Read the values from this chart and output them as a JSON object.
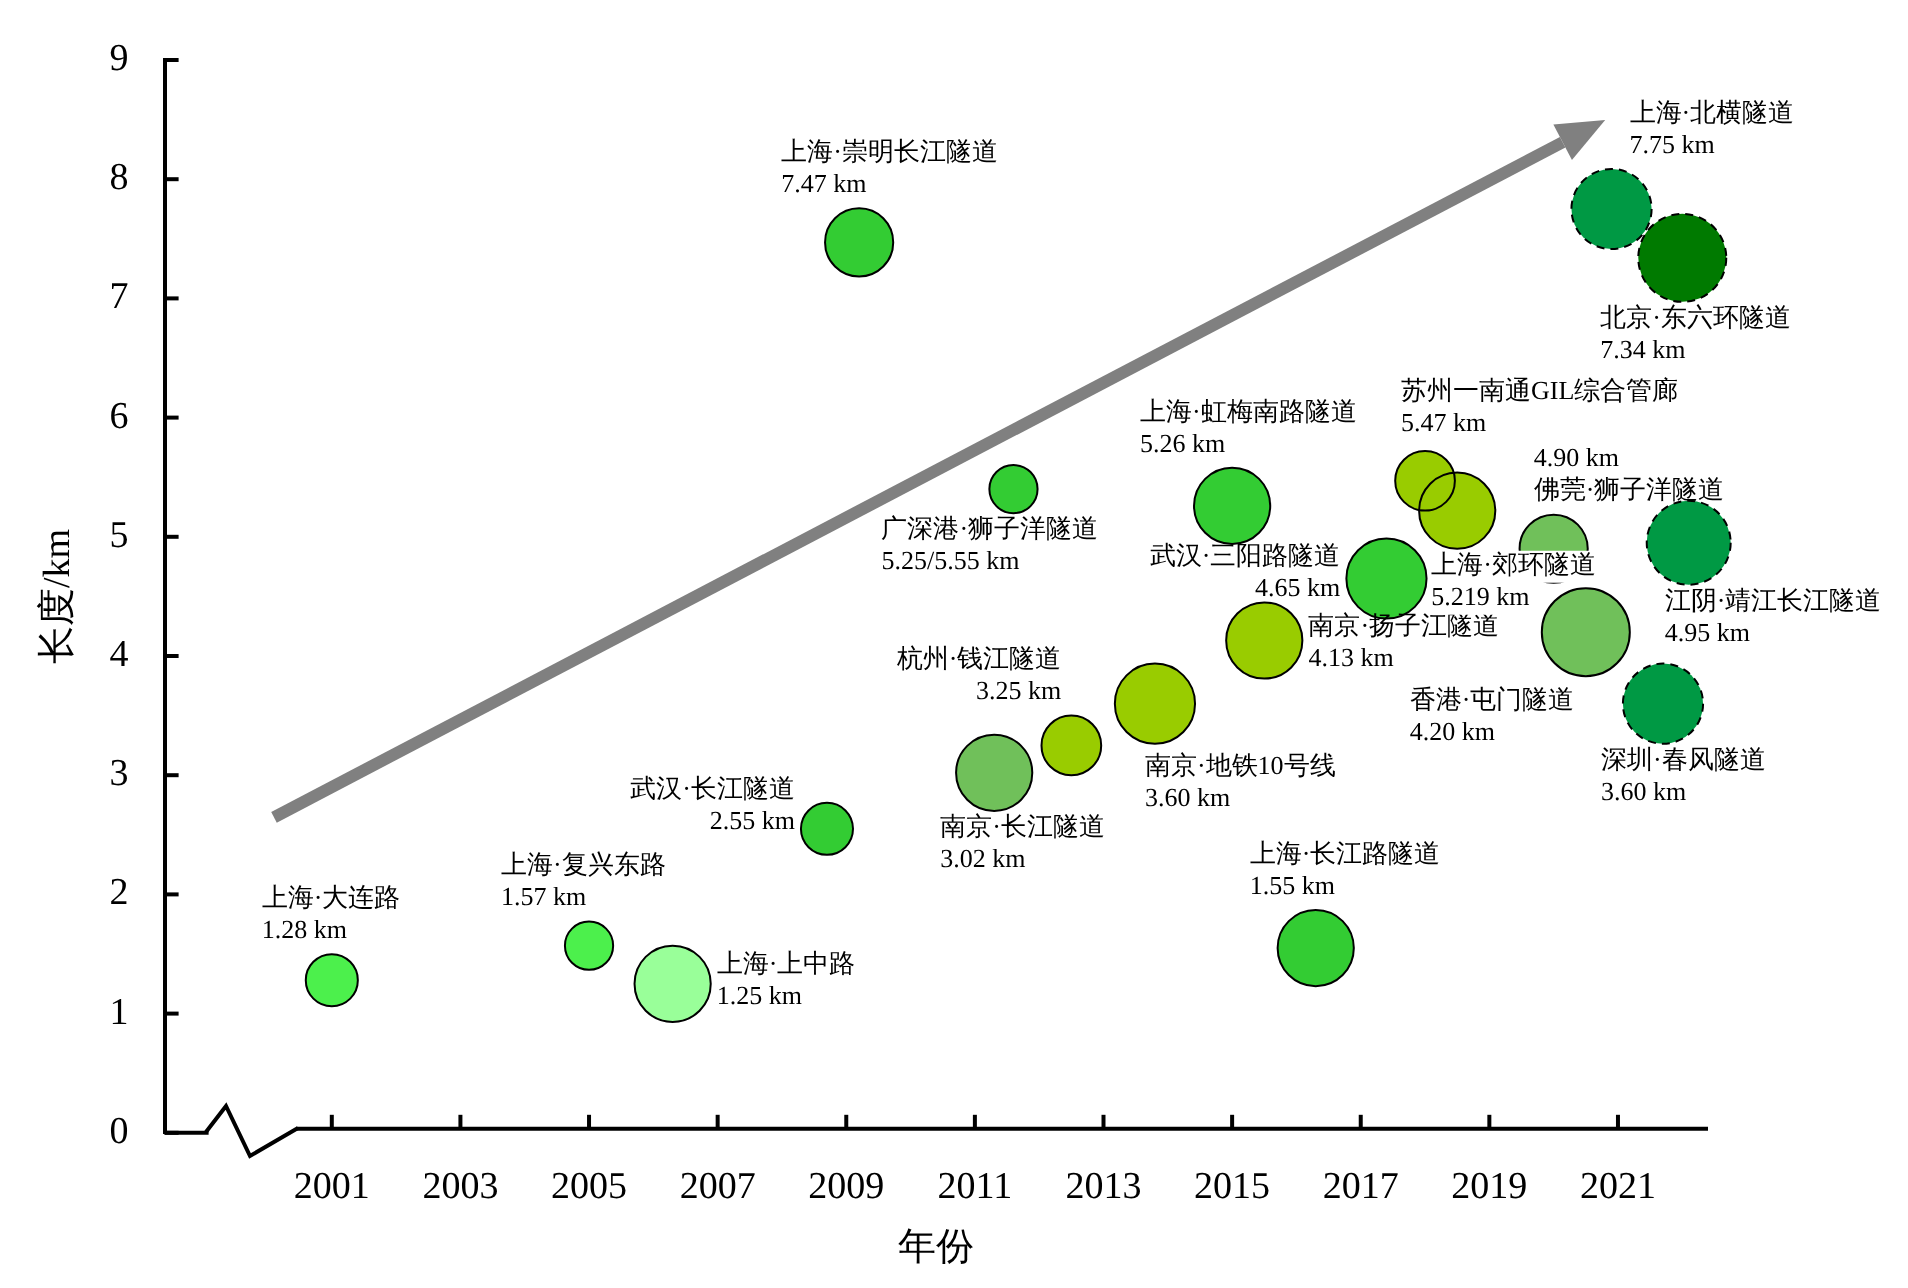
{
  "chart_data": {
    "type": "bubble",
    "xlabel": "年份",
    "ylabel": "长度/km",
    "xlim": [
      1998.4,
      2022.4
    ],
    "xticks": [
      2001,
      2003,
      2005,
      2007,
      2009,
      2011,
      2013,
      2015,
      2017,
      2019,
      2021
    ],
    "ylim": [
      0,
      9
    ],
    "yticks": [
      0,
      1,
      2,
      3,
      4,
      5,
      6,
      7,
      8,
      9
    ],
    "legend": false,
    "marker": "circle",
    "series": [
      {
        "name": "上海·大连路",
        "color": "#4cf04c",
        "x": [
          2001.0
        ],
        "values": [
          1.28
        ],
        "sizes": [
          0.35
        ],
        "value_labels": [
          "1.28 km"
        ]
      },
      {
        "name": "上海·复兴东路",
        "color": "#4cf04c",
        "x": [
          2005.0
        ],
        "values": [
          1.57
        ],
        "sizes": [
          0.3
        ],
        "value_labels": [
          "1.57 km"
        ]
      },
      {
        "name": "上海·上中路",
        "color": "#99ff99",
        "x": [
          2006.3
        ],
        "values": [
          1.25
        ],
        "sizes": [
          0.75
        ],
        "value_labels": [
          "1.25 km"
        ]
      },
      {
        "name": "武汉·长江隧道",
        "color": "#33cc33",
        "x": [
          2008.7
        ],
        "values": [
          2.55
        ],
        "sizes": [
          0.35
        ],
        "value_labels": [
          "2.55 km"
        ]
      },
      {
        "name": "上海·崇明长江隧道",
        "color": "#33cc33",
        "x": [
          2009.2
        ],
        "values": [
          7.47
        ],
        "sizes": [
          0.6
        ],
        "value_labels": [
          "7.47 km"
        ]
      },
      {
        "name": "南京·长江隧道",
        "color": "#70c05a",
        "x": [
          2011.3
        ],
        "values": [
          3.02
        ],
        "sizes": [
          0.75
        ],
        "value_labels": [
          "3.02 km"
        ]
      },
      {
        "name": "杭州·钱江隧道",
        "color": "#99cc00",
        "x": [
          2012.5
        ],
        "values": [
          3.25
        ],
        "sizes": [
          0.46
        ],
        "value_labels": [
          "3.25 km"
        ]
      },
      {
        "name": "南京·地铁10号线",
        "color": "#99cc00",
        "x": [
          2013.8
        ],
        "values": [
          3.6
        ],
        "sizes": [
          0.83
        ],
        "value_labels": [
          "3.60 km"
        ]
      },
      {
        "name": "广深港·狮子洋隧道",
        "color": "#33cc33",
        "x": [
          2011.6
        ],
        "values": [
          5.4
        ],
        "sizes": [
          0.3
        ],
        "value_labels": [
          "5.25/5.55 km"
        ]
      },
      {
        "name": "上海·虹梅南路隧道",
        "color": "#33cc33",
        "x": [
          2015.0
        ],
        "values": [
          5.26
        ],
        "sizes": [
          0.75
        ],
        "value_labels": [
          "5.26 km"
        ]
      },
      {
        "name": "南京·扬子江隧道",
        "color": "#99cc00",
        "x": [
          2015.5
        ],
        "values": [
          4.13
        ],
        "sizes": [
          0.75
        ],
        "value_labels": [
          "4.13 km"
        ]
      },
      {
        "name": "武汉·三阳路隧道",
        "color": "#33cc33",
        "x": [
          2017.4
        ],
        "values": [
          4.65
        ],
        "sizes": [
          0.83
        ],
        "value_labels": [
          "4.65 km"
        ]
      },
      {
        "name": "苏州一南通GIL综合管廊",
        "color": "#99cc00",
        "x": [
          2018.0
        ],
        "values": [
          5.47
        ],
        "sizes": [
          0.46
        ],
        "value_labels": [
          "5.47 km"
        ]
      },
      {
        "name": "上海·郊环隧道",
        "color": "#99cc00",
        "x": [
          2018.5
        ],
        "values": [
          5.219
        ],
        "sizes": [
          0.75
        ],
        "value_labels": [
          "5.219 km"
        ]
      },
      {
        "name": "佛莞·狮子洋隧道",
        "color": "#70c05a",
        "x": [
          2020.0
        ],
        "values": [
          4.9
        ],
        "sizes": [
          0.6
        ],
        "value_labels": [
          "4.90 km"
        ]
      },
      {
        "name": "香港·屯门隧道",
        "color": "#70c05a",
        "x": [
          2020.5
        ],
        "values": [
          4.2
        ],
        "sizes": [
          1
        ],
        "value_labels": [
          "4.20 km"
        ]
      },
      {
        "name": "江阴·靖江长江隧道",
        "color": "#009944",
        "x": [
          2022.1
        ],
        "values": [
          4.95
        ],
        "sizes": [
          0.91
        ],
        "value_labels": [
          "4.95 km"
        ],
        "line_style": "dashed"
      },
      {
        "name": "深圳·春风隧道",
        "color": "#009944",
        "x": [
          2021.7
        ],
        "values": [
          3.6
        ],
        "sizes": [
          0.83
        ],
        "value_labels": [
          "3.60 km"
        ],
        "line_style": "dashed"
      },
      {
        "name": "上海·北横隧道",
        "color": "#009944",
        "x": [
          2020.9
        ],
        "values": [
          7.75
        ],
        "sizes": [
          0.83
        ],
        "value_labels": [
          "7.75 km"
        ],
        "line_style": "dashed"
      },
      {
        "name": "北京·东六环隧道",
        "color": "#007a00",
        "x": [
          2022.0
        ],
        "values": [
          7.34
        ],
        "sizes": [
          1
        ],
        "value_labels": [
          "7.34 km"
        ],
        "line_style": "dashed"
      },
      {
        "name": "上海·长江路隧道",
        "color": "#33cc33",
        "x": [
          2016.3
        ],
        "values": [
          1.55
        ],
        "sizes": [
          0.75
        ],
        "value_labels": [
          "1.55 km"
        ]
      }
    ]
  }
}
